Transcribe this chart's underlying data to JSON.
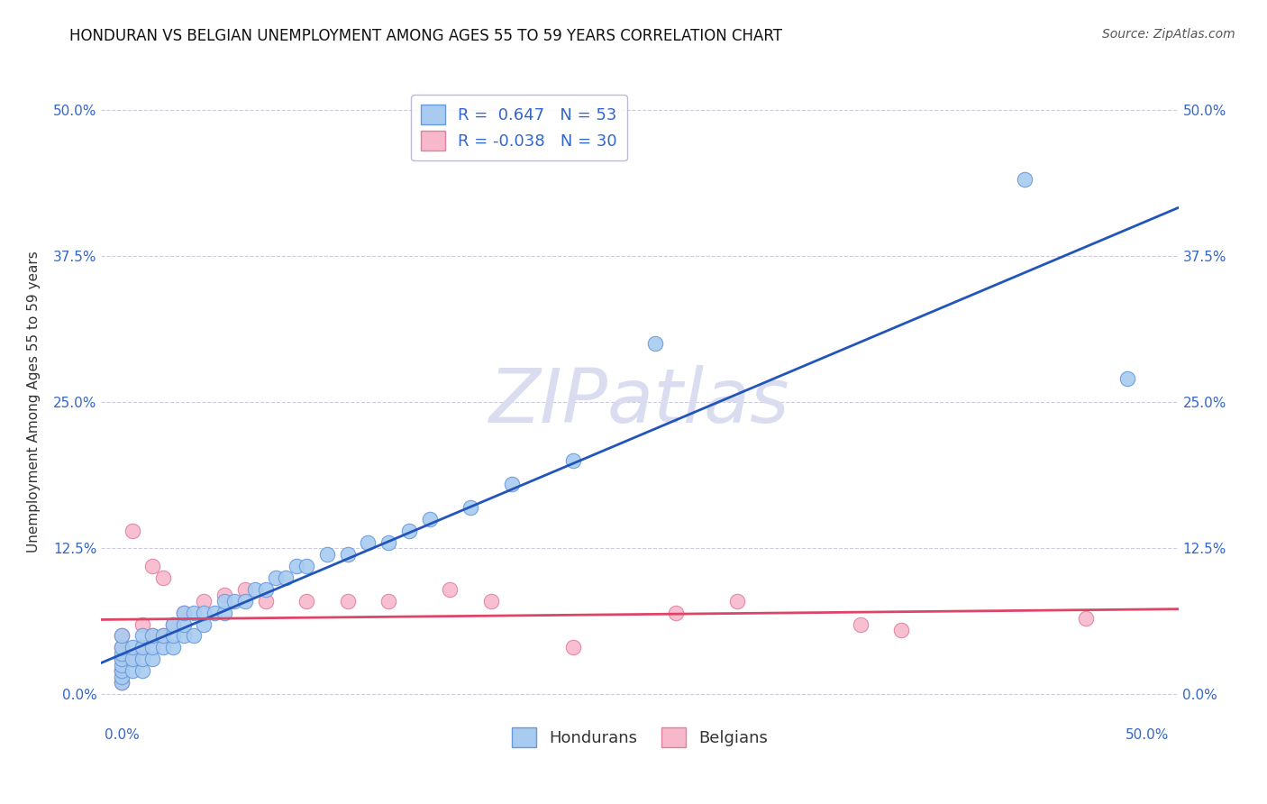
{
  "title": "HONDURAN VS BELGIAN UNEMPLOYMENT AMONG AGES 55 TO 59 YEARS CORRELATION CHART",
  "source_text": "Source: ZipAtlas.com",
  "ylabel": "Unemployment Among Ages 55 to 59 years",
  "xlim": [
    -0.01,
    0.515
  ],
  "ylim": [
    -0.025,
    0.525
  ],
  "xticks": [
    0.0,
    0.5
  ],
  "yticks": [
    0.0,
    0.125,
    0.25,
    0.375,
    0.5
  ],
  "xticklabels": [
    "0.0%",
    "50.0%"
  ],
  "yticklabels": [
    "0.0%",
    "12.5%",
    "25.0%",
    "37.5%",
    "50.0%"
  ],
  "right_yticks": [
    0.0,
    0.125,
    0.25,
    0.375,
    0.5
  ],
  "right_yticklabels": [
    "0.0%",
    "12.5%",
    "25.0%",
    "37.5%",
    "50.0%"
  ],
  "honduran_R": 0.647,
  "honduran_N": 53,
  "belgian_R": -0.038,
  "belgian_N": 30,
  "honduran_color": "#A8CBF0",
  "honduran_edge": "#6699DD",
  "belgian_color": "#F8B8CC",
  "belgian_edge": "#E080A0",
  "honduran_line_color": "#2255BB",
  "belgian_line_color": "#DD4466",
  "grid_color": "#CCCCDD",
  "background_color": "#FFFFFF",
  "watermark_color": "#DADDEF",
  "title_fontsize": 12,
  "label_fontsize": 11,
  "tick_fontsize": 11,
  "legend_fontsize": 13,
  "honduran_x": [
    0.0,
    0.0,
    0.0,
    0.0,
    0.0,
    0.0,
    0.0,
    0.0,
    0.005,
    0.005,
    0.005,
    0.01,
    0.01,
    0.01,
    0.01,
    0.015,
    0.015,
    0.015,
    0.02,
    0.02,
    0.025,
    0.025,
    0.025,
    0.03,
    0.03,
    0.03,
    0.035,
    0.035,
    0.04,
    0.04,
    0.045,
    0.05,
    0.05,
    0.055,
    0.06,
    0.065,
    0.07,
    0.075,
    0.08,
    0.085,
    0.09,
    0.1,
    0.11,
    0.12,
    0.13,
    0.14,
    0.15,
    0.17,
    0.19,
    0.22,
    0.26,
    0.44,
    0.49
  ],
  "honduran_y": [
    0.01,
    0.015,
    0.02,
    0.025,
    0.03,
    0.035,
    0.04,
    0.05,
    0.02,
    0.03,
    0.04,
    0.02,
    0.03,
    0.04,
    0.05,
    0.03,
    0.04,
    0.05,
    0.04,
    0.05,
    0.04,
    0.05,
    0.06,
    0.05,
    0.06,
    0.07,
    0.05,
    0.07,
    0.06,
    0.07,
    0.07,
    0.07,
    0.08,
    0.08,
    0.08,
    0.09,
    0.09,
    0.1,
    0.1,
    0.11,
    0.11,
    0.12,
    0.12,
    0.13,
    0.13,
    0.14,
    0.15,
    0.16,
    0.18,
    0.2,
    0.3,
    0.44,
    0.27
  ],
  "belgian_x": [
    0.0,
    0.0,
    0.0,
    0.0,
    0.0,
    0.005,
    0.005,
    0.01,
    0.01,
    0.015,
    0.015,
    0.02,
    0.02,
    0.025,
    0.03,
    0.04,
    0.05,
    0.06,
    0.07,
    0.09,
    0.11,
    0.13,
    0.16,
    0.18,
    0.22,
    0.27,
    0.3,
    0.36,
    0.38,
    0.47
  ],
  "belgian_y": [
    0.01,
    0.02,
    0.03,
    0.04,
    0.05,
    0.03,
    0.14,
    0.04,
    0.06,
    0.05,
    0.11,
    0.05,
    0.1,
    0.06,
    0.07,
    0.08,
    0.085,
    0.09,
    0.08,
    0.08,
    0.08,
    0.08,
    0.09,
    0.08,
    0.04,
    0.07,
    0.08,
    0.06,
    0.055,
    0.065
  ]
}
